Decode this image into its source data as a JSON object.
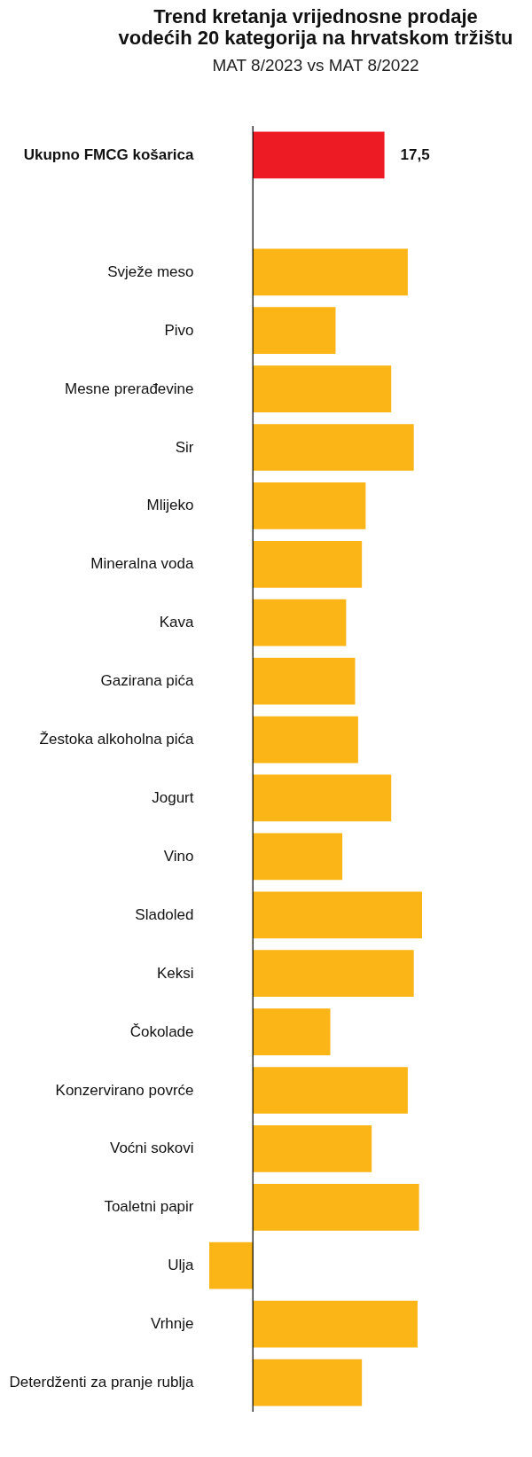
{
  "chart_data": {
    "type": "bar",
    "orientation": "horizontal",
    "title": "Trend kretanja vrijednosne prodaje\nvodećih 20 kategorija na hrvatskom tržištu",
    "subtitle": "MAT 8/2023 vs MAT 8/2022",
    "categories": [
      "Ukupno FMCG košarica",
      null,
      "Svježe meso",
      "Pivo",
      "Mesne prerađevine",
      "Sir",
      "Mlijeko",
      "Mineralna voda",
      "Kava",
      "Gazirana pića",
      "Žestoka alkoholna pića",
      "Jogurt",
      "Vino",
      "Sladoled",
      "Keksi",
      "Čokolade",
      "Konzervirano povrće",
      "Voćni sokovi",
      "Toaletni papir",
      "Ulja",
      "Vrhnje",
      "Deterdženti za pranje rublja"
    ],
    "values": [
      17.5,
      null,
      20.6,
      11.0,
      18.4,
      21.4,
      15.0,
      14.5,
      12.4,
      13.6,
      14.0,
      18.4,
      11.9,
      22.5,
      21.4,
      10.3,
      20.6,
      15.8,
      22.1,
      -5.8,
      21.9,
      14.5
    ],
    "colors": [
      "#ed1c24",
      null,
      "#fbb516",
      "#fbb516",
      "#fbb516",
      "#fbb516",
      "#fbb516",
      "#fbb516",
      "#fbb516",
      "#fbb516",
      "#fbb516",
      "#fbb516",
      "#fbb516",
      "#fbb516",
      "#fbb516",
      "#fbb516",
      "#fbb516",
      "#fbb516",
      "#fbb516",
      "#fbb516",
      "#fbb516",
      "#fbb516"
    ],
    "value_labels": [
      "17,5",
      null,
      null,
      null,
      null,
      null,
      null,
      null,
      null,
      null,
      null,
      null,
      null,
      null,
      null,
      null,
      null,
      null,
      null,
      null,
      null,
      null
    ],
    "grid": false,
    "legend": false
  }
}
